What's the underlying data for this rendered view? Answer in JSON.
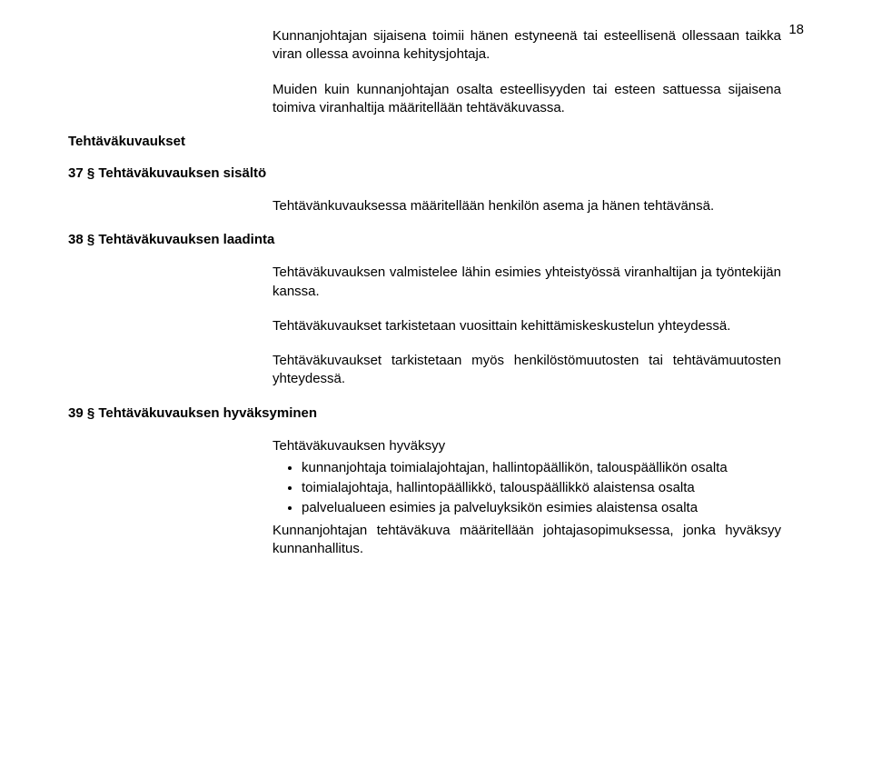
{
  "page_number": "18",
  "intro_paras": [
    "Kunnanjohtajan sijaisena toimii hänen estyneenä tai esteellisenä ollessaan taikka viran ollessa avoinna kehitysjohtaja.",
    "Muiden kuin kunnanjohtajan osalta esteellisyyden tai esteen sattuessa sijaisena toimiva viranhaltija määritellään tehtäväkuvassa."
  ],
  "section_heading_main": "Tehtäväkuvaukset",
  "s37": {
    "heading": "37 § Tehtäväkuvauksen sisältö",
    "para": "Tehtävänkuvauksessa määritellään henkilön asema ja hänen tehtävänsä."
  },
  "s38": {
    "heading": "38 § Tehtäväkuvauksen laadinta",
    "paras": [
      "Tehtäväkuvauksen valmistelee lähin esimies yhteistyössä viranhaltijan ja työntekijän kanssa.",
      "Tehtäväkuvaukset tarkistetaan vuosittain kehittämiskeskustelun yhteydessä.",
      "Tehtäväkuvaukset tarkistetaan myös henkilöstömuutosten tai tehtävämuutosten yhteydessä."
    ]
  },
  "s39": {
    "heading": "39 § Tehtäväkuvauksen hyväksyminen",
    "lead": "Tehtäväkuvauksen hyväksyy",
    "bullets": [
      "kunnanjohtaja toimialajohtajan, hallintopäällikön, talouspäällikön osalta",
      "toimialajohtaja, hallintopäällikkö, talouspäällikkö alaistensa osalta",
      "palvelualueen esimies ja palveluyksikön esimies alaistensa osalta"
    ],
    "trailing": "Kunnanjohtajan tehtäväkuva määritellään johtajasopimuksessa, jonka hyväksyy kunnanhallitus."
  }
}
